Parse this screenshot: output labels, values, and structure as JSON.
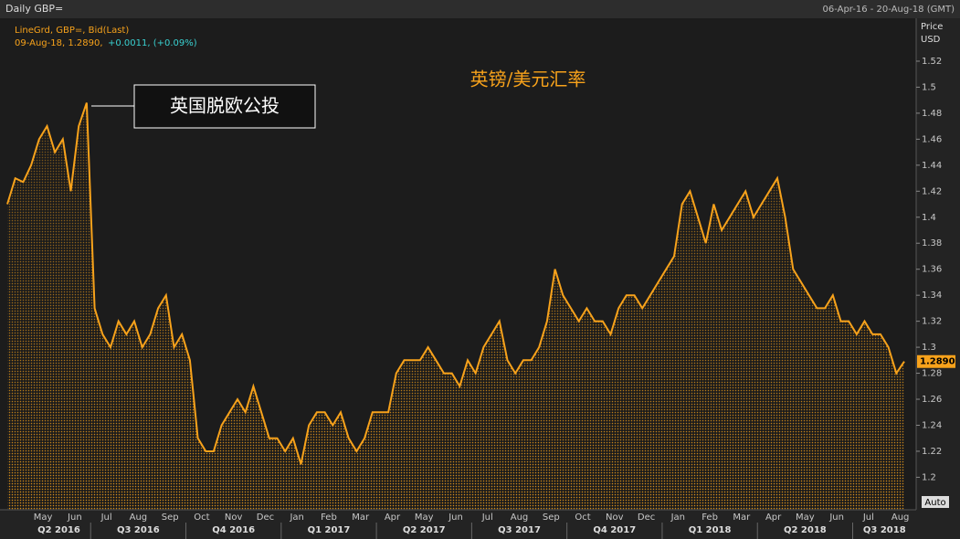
{
  "header": {
    "left": "Daily GBP=",
    "right": "06-Apr-16 - 20-Aug-18 (GMT)"
  },
  "legend": {
    "line1": "LineGrd, GBP=, Bid(Last)",
    "line2_date": "09-Aug-18, 1.2890,",
    "line2_change": "+0.0011, (+0.09%)"
  },
  "axis_units": {
    "top": "Price",
    "bottom": "USD"
  },
  "auto_button": "Auto",
  "chart_data": {
    "type": "area",
    "title": "英镑/美元汇率",
    "annotation": "英国脱欧公投",
    "color": "#f7a21b",
    "categories": [
      null,
      null,
      null,
      null,
      "May",
      null,
      null,
      null,
      "Jun",
      null,
      null,
      null,
      "Jul",
      null,
      null,
      null,
      "Aug",
      null,
      null,
      null,
      "Sep",
      null,
      null,
      null,
      "Oct",
      null,
      null,
      null,
      "Nov",
      null,
      null,
      null,
      "Dec",
      null,
      null,
      null,
      "Jan",
      null,
      null,
      null,
      "Feb",
      null,
      null,
      null,
      "Mar",
      null,
      null,
      null,
      "Apr",
      null,
      null,
      null,
      "May",
      null,
      null,
      null,
      "Jun",
      null,
      null,
      null,
      "Jul",
      null,
      null,
      null,
      "Aug",
      null,
      null,
      null,
      "Sep",
      null,
      null,
      null,
      "Oct",
      null,
      null,
      null,
      "Nov",
      null,
      null,
      null,
      "Dec",
      null,
      null,
      null,
      "Jan",
      null,
      null,
      null,
      "Feb",
      null,
      null,
      null,
      "Mar",
      null,
      null,
      null,
      "Apr",
      null,
      null,
      null,
      "May",
      null,
      null,
      null,
      "Jun",
      null,
      null,
      null,
      "Jul",
      null,
      null,
      null,
      "Aug",
      null
    ],
    "quarters": [
      "Q2 2016",
      "Q3 2016",
      "Q4 2016",
      "Q1 2017",
      "Q2 2017",
      "Q3 2017",
      "Q4 2017",
      "Q1 2018",
      "Q2 2018",
      "Q3 2018"
    ],
    "values": [
      1.41,
      1.43,
      1.427,
      1.44,
      1.46,
      1.47,
      1.45,
      1.46,
      1.42,
      1.47,
      1.488,
      1.33,
      1.31,
      1.3,
      1.32,
      1.31,
      1.32,
      1.3,
      1.31,
      1.33,
      1.34,
      1.3,
      1.31,
      1.29,
      1.23,
      1.22,
      1.22,
      1.24,
      1.25,
      1.26,
      1.25,
      1.27,
      1.25,
      1.23,
      1.23,
      1.22,
      1.23,
      1.21,
      1.24,
      1.25,
      1.25,
      1.24,
      1.25,
      1.23,
      1.22,
      1.23,
      1.25,
      1.25,
      1.25,
      1.28,
      1.29,
      1.29,
      1.29,
      1.3,
      1.29,
      1.28,
      1.28,
      1.27,
      1.29,
      1.28,
      1.3,
      1.31,
      1.32,
      1.29,
      1.28,
      1.29,
      1.29,
      1.3,
      1.32,
      1.36,
      1.34,
      1.33,
      1.32,
      1.33,
      1.32,
      1.32,
      1.31,
      1.33,
      1.34,
      1.34,
      1.33,
      1.34,
      1.35,
      1.36,
      1.37,
      1.41,
      1.42,
      1.4,
      1.38,
      1.41,
      1.39,
      1.4,
      1.41,
      1.42,
      1.4,
      1.41,
      1.42,
      1.43,
      1.4,
      1.36,
      1.35,
      1.34,
      1.33,
      1.33,
      1.34,
      1.32,
      1.32,
      1.31,
      1.32,
      1.31,
      1.31,
      1.3,
      1.28,
      1.289
    ],
    "last_price": {
      "value": 1.289,
      "label": "1.2890"
    },
    "ylim": [
      1.175,
      1.553
    ],
    "yticks": [
      1.2,
      1.22,
      1.24,
      1.26,
      1.28,
      1.3,
      1.32,
      1.34,
      1.36,
      1.38,
      1.4,
      1.42,
      1.44,
      1.46,
      1.48,
      1.5,
      1.52
    ]
  }
}
